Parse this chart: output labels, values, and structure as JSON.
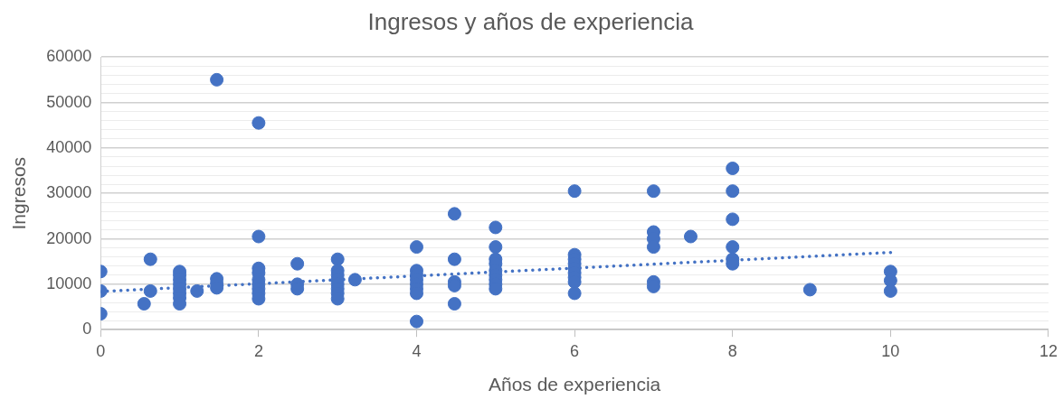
{
  "chart_data": {
    "type": "scatter",
    "title": "Ingresos y años de experiencia",
    "xlabel": "Años de experiencia",
    "ylabel": "Ingresos",
    "xlim": [
      0,
      12
    ],
    "xticks": [
      0,
      2,
      4,
      6,
      8,
      10,
      12
    ],
    "ylim": [
      0,
      60000
    ],
    "yticks": [
      0,
      {
        "value": 2000,
        "label": null
      },
      {
        "value": 4000,
        "label": null
      },
      {
        "value": 6000,
        "label": null
      },
      {
        "value": 8000,
        "label": null
      },
      10000,
      {
        "value": 12000,
        "label": null
      },
      {
        "value": 14000,
        "label": null
      },
      {
        "value": 16000,
        "label": null
      },
      {
        "value": 18000,
        "label": null
      },
      20000,
      {
        "value": 22000,
        "label": null
      },
      {
        "value": 24000,
        "label": null
      },
      {
        "value": 26000,
        "label": null
      },
      {
        "value": 28000,
        "label": null
      },
      30000,
      {
        "value": 32000,
        "label": null
      },
      {
        "value": 34000,
        "label": null
      },
      {
        "value": 36000,
        "label": null
      },
      {
        "value": 38000,
        "label": null
      },
      40000,
      {
        "value": 42000,
        "label": null
      },
      {
        "value": 44000,
        "label": null
      },
      {
        "value": 46000,
        "label": null
      },
      {
        "value": 48000,
        "label": null
      },
      50000,
      {
        "value": 52000,
        "label": null
      },
      {
        "value": 54000,
        "label": null
      },
      {
        "value": 56000,
        "label": null
      },
      {
        "value": 58000,
        "label": null
      },
      60000
    ],
    "grid": "y",
    "legend": false,
    "series": [
      {
        "type": "scatter",
        "color": "#4472c4",
        "marker": "circle",
        "x": [
          0,
          0,
          0,
          0.63,
          0.63,
          0.55,
          1,
          1,
          1,
          1,
          1,
          1,
          1,
          1,
          1.22,
          1.47,
          1.47,
          1.47,
          1.47,
          2,
          2,
          2,
          2,
          2,
          2,
          2,
          2,
          2,
          2.49,
          2.49,
          2.49,
          3,
          3,
          3,
          3,
          3,
          3,
          3,
          3,
          3.22,
          4,
          4,
          4,
          4,
          4,
          4,
          4,
          4,
          4.48,
          4.48,
          4.48,
          4.48,
          4.48,
          5,
          5,
          5,
          5,
          5,
          5,
          5,
          5,
          5,
          6,
          6,
          6,
          6,
          6,
          6,
          6,
          6,
          6,
          7,
          7,
          7,
          7,
          7,
          7,
          7.47,
          8,
          8,
          8,
          8,
          8,
          8,
          8.98,
          10,
          10,
          10
        ],
        "values": [
          12800,
          8500,
          3500,
          15500,
          8500,
          5700,
          12800,
          12000,
          11000,
          10000,
          9000,
          8000,
          7000,
          5700,
          8500,
          55000,
          11200,
          10200,
          9200,
          45500,
          20500,
          13500,
          12500,
          11000,
          10000,
          9000,
          8000,
          6800,
          14500,
          10000,
          9000,
          15500,
          13000,
          12000,
          11000,
          10000,
          9000,
          8000,
          6800,
          11000,
          18200,
          13000,
          12000,
          11000,
          10000,
          9000,
          8000,
          1800,
          25500,
          15500,
          10500,
          9700,
          5700,
          22500,
          18200,
          15500,
          14500,
          13000,
          12000,
          11000,
          10000,
          9000,
          30500,
          16500,
          15500,
          14500,
          13500,
          12500,
          11500,
          10500,
          8000,
          30500,
          21500,
          20000,
          18200,
          10500,
          9500,
          20500,
          35500,
          30500,
          24300,
          18200,
          15500,
          14500,
          8800,
          12800,
          10800,
          8500
        ]
      },
      {
        "type": "line",
        "color": "#4472c4",
        "line_style": "dotted",
        "x": [
          0,
          10
        ],
        "values": [
          8400,
          17000
        ]
      }
    ]
  }
}
